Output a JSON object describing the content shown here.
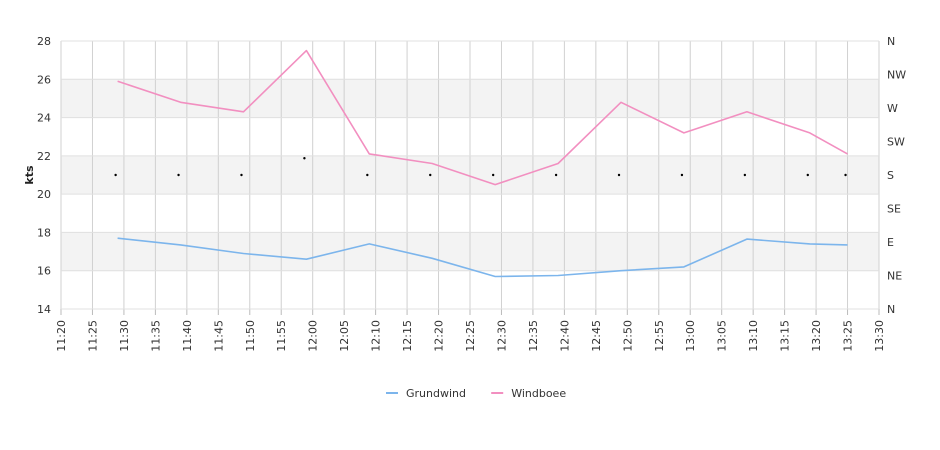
{
  "chart_data": {
    "type": "line",
    "ylabel": "kts",
    "ylim": [
      14,
      28
    ],
    "y_ticks": [
      "14",
      "16",
      "18",
      "20",
      "22",
      "24",
      "26",
      "28"
    ],
    "x_ticks": [
      "11:20",
      "11:25",
      "11:30",
      "11:35",
      "11:40",
      "11:45",
      "11:50",
      "11:55",
      "12:00",
      "12:05",
      "12:10",
      "12:15",
      "12:20",
      "12:25",
      "12:30",
      "12:35",
      "12:40",
      "12:45",
      "12:50",
      "12:55",
      "13:00",
      "13:05",
      "13:10",
      "13:15",
      "13:20",
      "13:25",
      "13:30"
    ],
    "xlim": [
      "11:20",
      "13:30"
    ],
    "right_axis_ticks": [
      "N",
      "NE",
      "E",
      "SE",
      "S",
      "SW",
      "W",
      "NW",
      "N"
    ],
    "grid": true,
    "legend_position": "bottom",
    "colors": {
      "Grundwind": "#7cb5ec",
      "Windboee": "#f28fc0",
      "band": "#f3f3f3",
      "grid": "#d0d0d0",
      "direction_marker": "#000000"
    },
    "series": [
      {
        "name": "Grundwind",
        "x": [
          "11:29",
          "11:39",
          "11:49",
          "11:59",
          "12:09",
          "12:19",
          "12:29",
          "12:39",
          "12:49",
          "12:59",
          "13:09",
          "13:19",
          "13:25"
        ],
        "values": [
          17.7,
          17.35,
          16.9,
          16.6,
          17.4,
          16.65,
          15.7,
          15.75,
          16.0,
          16.2,
          17.65,
          17.4,
          17.35
        ]
      },
      {
        "name": "Windboee",
        "x": [
          "11:29",
          "11:39",
          "11:49",
          "11:59",
          "12:09",
          "12:19",
          "12:29",
          "12:39",
          "12:49",
          "12:59",
          "13:09",
          "13:19",
          "13:25"
        ],
        "values": [
          25.9,
          24.8,
          24.3,
          27.5,
          22.1,
          21.6,
          20.5,
          21.6,
          24.8,
          23.2,
          24.3,
          23.2,
          22.1
        ]
      }
    ],
    "wind_direction": {
      "x": [
        "11:29",
        "11:39",
        "11:49",
        "11:59",
        "12:09",
        "12:19",
        "12:29",
        "12:39",
        "12:49",
        "12:59",
        "13:09",
        "13:19",
        "13:25"
      ],
      "values": [
        "S",
        "S",
        "S",
        "SSW",
        "S",
        "S",
        "S",
        "S",
        "S",
        "S",
        "S",
        "S",
        "S"
      ]
    }
  }
}
